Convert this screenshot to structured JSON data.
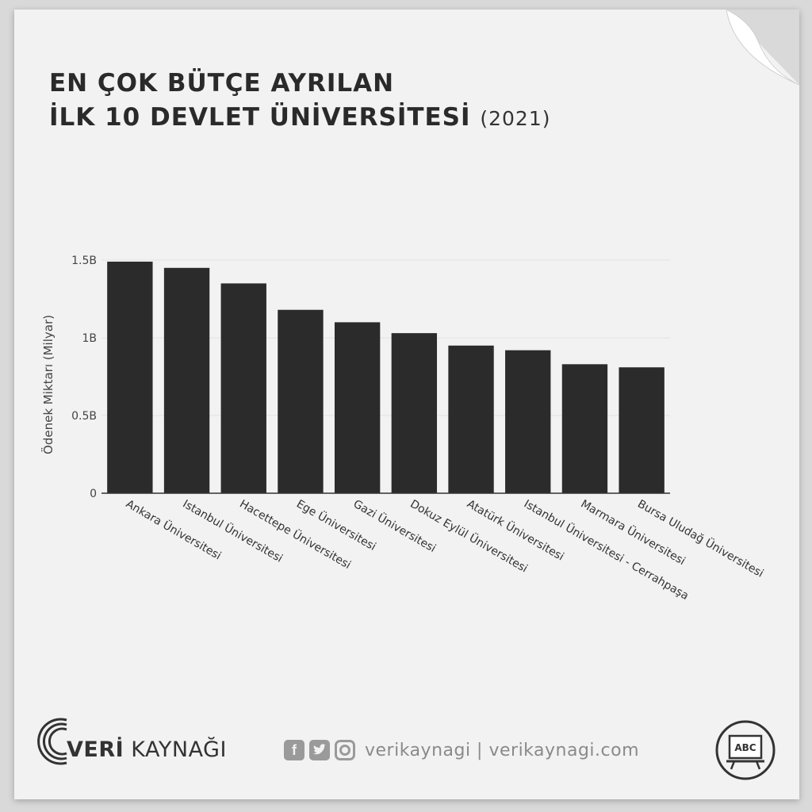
{
  "title": {
    "line1": "EN ÇOK BÜTÇE AYRILAN",
    "line2": "İLK 10 DEVLET ÜNİVERSİTESİ",
    "year": "(2021)"
  },
  "chart_data": {
    "type": "bar",
    "categories": [
      "Ankara Üniversitesi",
      "Istanbul Üniversitesi",
      "Hacettepe Üniversitesi",
      "Ege Üniversitesi",
      "Gazi Üniversitesi",
      "Dokuz Eylül Üniversitesi",
      "Atatürk Üniversitesi",
      "Istanbul Üniversitesi - Cerrahpaşa",
      "Marmara Üniversitesi",
      "Bursa Uludağ Üniversitesi"
    ],
    "values": [
      1.49,
      1.45,
      1.35,
      1.18,
      1.1,
      1.03,
      0.95,
      0.92,
      0.83,
      0.81
    ],
    "xlabel": "",
    "ylabel": "Ödenek Miktarı (Milyar)",
    "ylim": [
      0,
      1.5
    ],
    "yticks": [
      {
        "value": 0,
        "label": "0"
      },
      {
        "value": 0.5,
        "label": "0.5B"
      },
      {
        "value": 1,
        "label": "1B"
      },
      {
        "value": 1.5,
        "label": "1.5B"
      }
    ],
    "grid": true,
    "bar_color": "#2b2b2b"
  },
  "footer": {
    "brand_bold": "VERİ",
    "brand_rest": " KAYNAĞI",
    "social_text": "verikaynagi | verikaynagi.com",
    "badge_text": "ABC",
    "icons": [
      "facebook-icon",
      "twitter-icon",
      "instagram-icon"
    ]
  }
}
